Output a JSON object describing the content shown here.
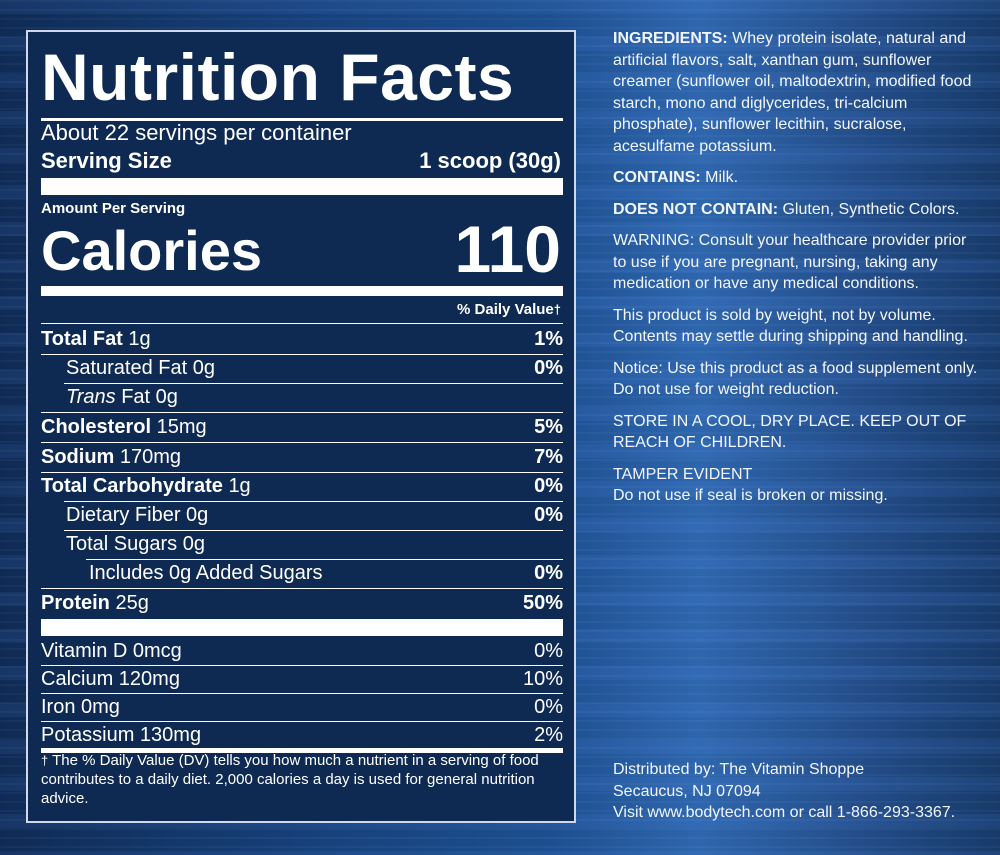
{
  "panel": {
    "title": "Nutrition Facts",
    "servings_per_container": "About 22 servings per container",
    "serving_size_label": "Serving Size",
    "serving_size_value": "1 scoop (30g)",
    "amount_per_serving": "Amount Per Serving",
    "calories_label": "Calories",
    "calories_value": "110",
    "daily_value_header": "% Daily Value",
    "dagger": "†",
    "nutrients": [
      {
        "name": "Total Fat",
        "amount": "1g",
        "dv": "1%"
      },
      {
        "name": "Saturated Fat",
        "amount": "0g",
        "dv": "0%"
      },
      {
        "name": "Trans",
        "name_suffix": "Fat",
        "amount": "0g",
        "dv": ""
      },
      {
        "name": "Cholesterol",
        "amount": "15mg",
        "dv": "5%"
      },
      {
        "name": "Sodium",
        "amount": "170mg",
        "dv": "7%"
      },
      {
        "name": "Total Carbohydrate",
        "amount": "1g",
        "dv": "0%"
      },
      {
        "name": "Dietary Fiber",
        "amount": "0g",
        "dv": "0%"
      },
      {
        "name": "Total Sugars",
        "amount": "0g",
        "dv": ""
      },
      {
        "name": "Includes 0g Added Sugars",
        "amount": "",
        "dv": "0%"
      },
      {
        "name": "Protein",
        "amount": "25g",
        "dv": "50%"
      }
    ],
    "vitamins": [
      {
        "label": "Vitamin D 0mcg",
        "dv": "0%"
      },
      {
        "label": "Calcium 120mg",
        "dv": "10%"
      },
      {
        "label": "Iron 0mg",
        "dv": "0%"
      },
      {
        "label": "Potassium 130mg",
        "dv": "2%"
      }
    ],
    "footnote": "The % Daily Value (DV) tells you how much a nutrient in a serving of food contributes to a daily diet. 2,000 calories a day is used for general nutrition advice."
  },
  "info": {
    "ingredients_label": "INGREDIENTS:",
    "ingredients_text": "Whey protein isolate, natural and artificial flavors, salt, xanthan gum, sunflower creamer (sunflower oil, maltodextrin, modified food starch, mono and diglycerides, tri-calcium phosphate), sunflower lecithin, sucralose, acesulfame potassium.",
    "contains_label": "CONTAINS:",
    "contains_text": "Milk.",
    "not_contain_label": "DOES NOT CONTAIN:",
    "not_contain_text": "Gluten, Synthetic Colors.",
    "warning": "WARNING: Consult your healthcare provider prior to use if you are pregnant, nursing, taking any medication or have any medical conditions.",
    "weight_notice": "This product is sold by weight, not by volume. Contents may settle during shipping and handling.",
    "notice": "Notice: Use this product as a food supplement only. Do not use for weight reduction.",
    "storage": "STORE IN A COOL, DRY PLACE. KEEP OUT OF REACH OF CHILDREN.",
    "tamper_title": "TAMPER EVIDENT",
    "tamper_text": "Do not use if seal is broken or missing.",
    "distributed_by": "Distributed by: The Vitamin Shoppe",
    "address": "Secaucus, NJ 07094",
    "visit": "Visit www.bodytech.com or call 1-866-293-3367."
  }
}
